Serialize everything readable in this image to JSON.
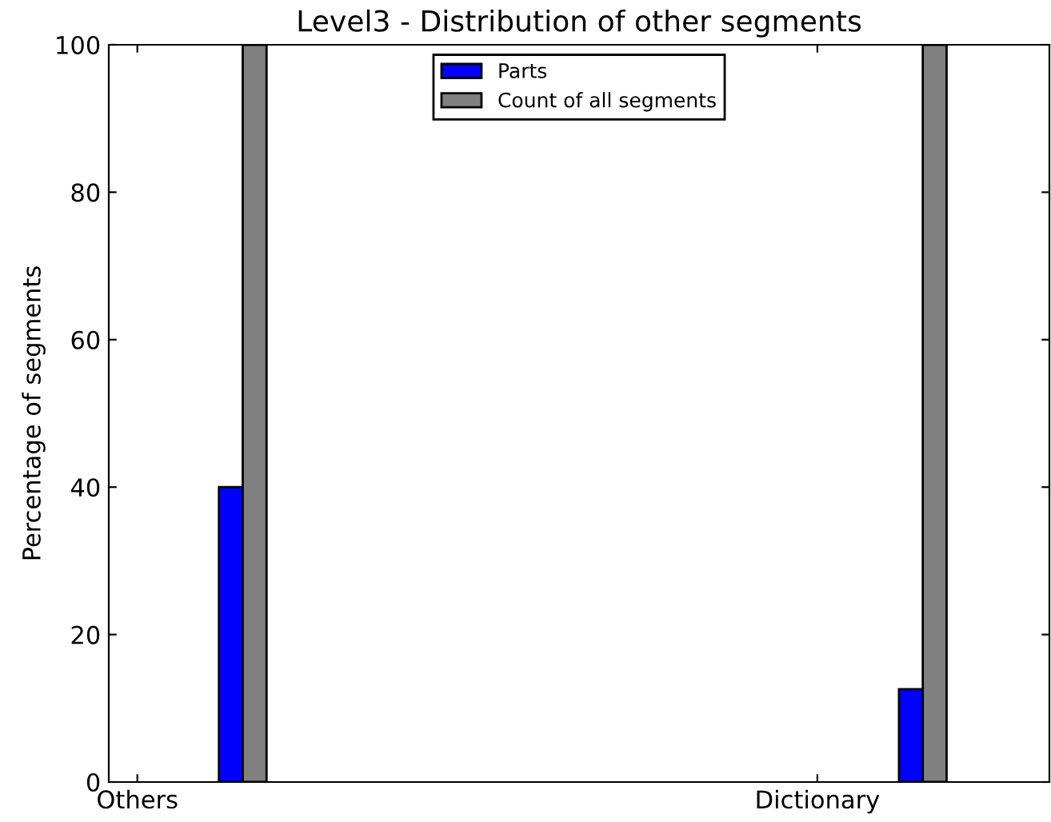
{
  "chart_data": {
    "type": "bar",
    "title": "Level3 - Distribution of other segments",
    "ylabel": "Percentage of segments",
    "categories": [
      "Others",
      "Dictionary"
    ],
    "series": [
      {
        "name": "Parts",
        "color": "#0000ff",
        "values": [
          40,
          12.6
        ]
      },
      {
        "name": "Count of all segments",
        "color": "#808080",
        "values": [
          100,
          100
        ]
      }
    ],
    "ylim": [
      0,
      100
    ],
    "yticks": [
      0,
      20,
      40,
      60,
      80,
      100
    ],
    "grid": false,
    "legend": "top"
  }
}
